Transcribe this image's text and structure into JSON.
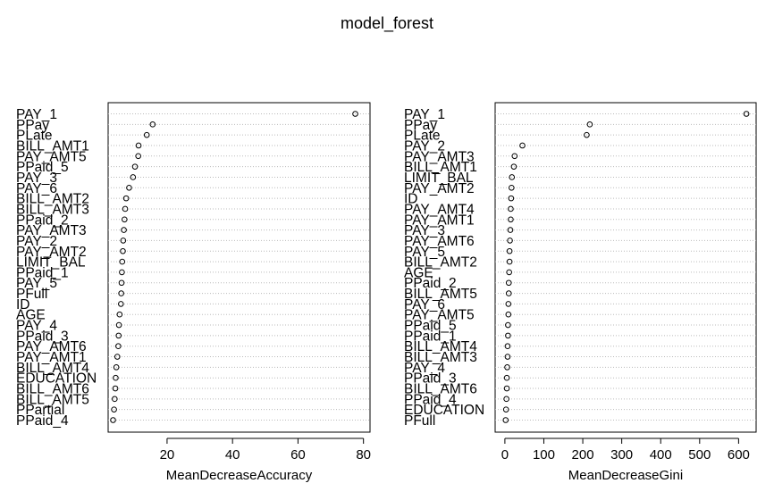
{
  "title": "model_forest",
  "chart_data": [
    {
      "type": "scatter",
      "subtype": "dotchart",
      "xlabel": "MeanDecreaseAccuracy",
      "xlim": [
        2,
        82
      ],
      "xticks": [
        20,
        40,
        60,
        80
      ],
      "grid": "dotted horizontal",
      "categories": [
        "PAY_1",
        "PPay",
        "PLate",
        "BILL_AMT1",
        "PAY_AMT5",
        "PPaid_5",
        "PAY_3",
        "PAY_6",
        "BILL_AMT2",
        "BILL_AMT3",
        "PPaid_2",
        "PAY_AMT3",
        "PAY_2",
        "PAY_AMT2",
        "LIMIT_BAL",
        "PPaid_1",
        "PAY_5",
        "PFull",
        "ID",
        "AGE",
        "PAY_4",
        "PPaid_3",
        "PAY_AMT6",
        "PAY_AMT1",
        "BILL_AMT4",
        "EDUCATION",
        "BILL_AMT6",
        "BILL_AMT5",
        "PPartial",
        "PPaid_4"
      ],
      "values": [
        77.5,
        15.6,
        13.8,
        11.3,
        11.2,
        10.2,
        9.6,
        8.4,
        7.5,
        7.2,
        7.0,
        6.8,
        6.6,
        6.5,
        6.3,
        6.2,
        6.1,
        6.0,
        5.9,
        5.5,
        5.3,
        5.2,
        5.1,
        4.8,
        4.5,
        4.3,
        4.2,
        4.0,
        3.8,
        3.5
      ]
    },
    {
      "type": "scatter",
      "subtype": "dotchart",
      "xlabel": "MeanDecreaseGini",
      "xlim": [
        -25,
        645
      ],
      "xticks": [
        0,
        100,
        200,
        300,
        400,
        500,
        600
      ],
      "grid": "dotted horizontal",
      "categories": [
        "PAY_1",
        "PPay",
        "PLate",
        "PAY_2",
        "PAY_AMT3",
        "BILL_AMT1",
        "LIMIT_BAL",
        "PAY_AMT2",
        "ID",
        "PAY_AMT4",
        "PAY_AMT1",
        "PAY_3",
        "PAY_AMT6",
        "PAY_5",
        "BILL_AMT2",
        "AGE",
        "PPaid_2",
        "BILL_AMT5",
        "PAY_6",
        "PAY_AMT5",
        "PPaid_5",
        "PPaid_1",
        "BILL_AMT4",
        "BILL_AMT3",
        "PAY_4",
        "PPaid_3",
        "BILL_AMT6",
        "PPaid_4",
        "EDUCATION",
        "PFull"
      ],
      "values": [
        620,
        218,
        210,
        45,
        25,
        23,
        18,
        17,
        16,
        15,
        15,
        14,
        13,
        12,
        12,
        11,
        10,
        10,
        9,
        9,
        8,
        8,
        7,
        7,
        6,
        5,
        5,
        4,
        3,
        2
      ]
    }
  ]
}
